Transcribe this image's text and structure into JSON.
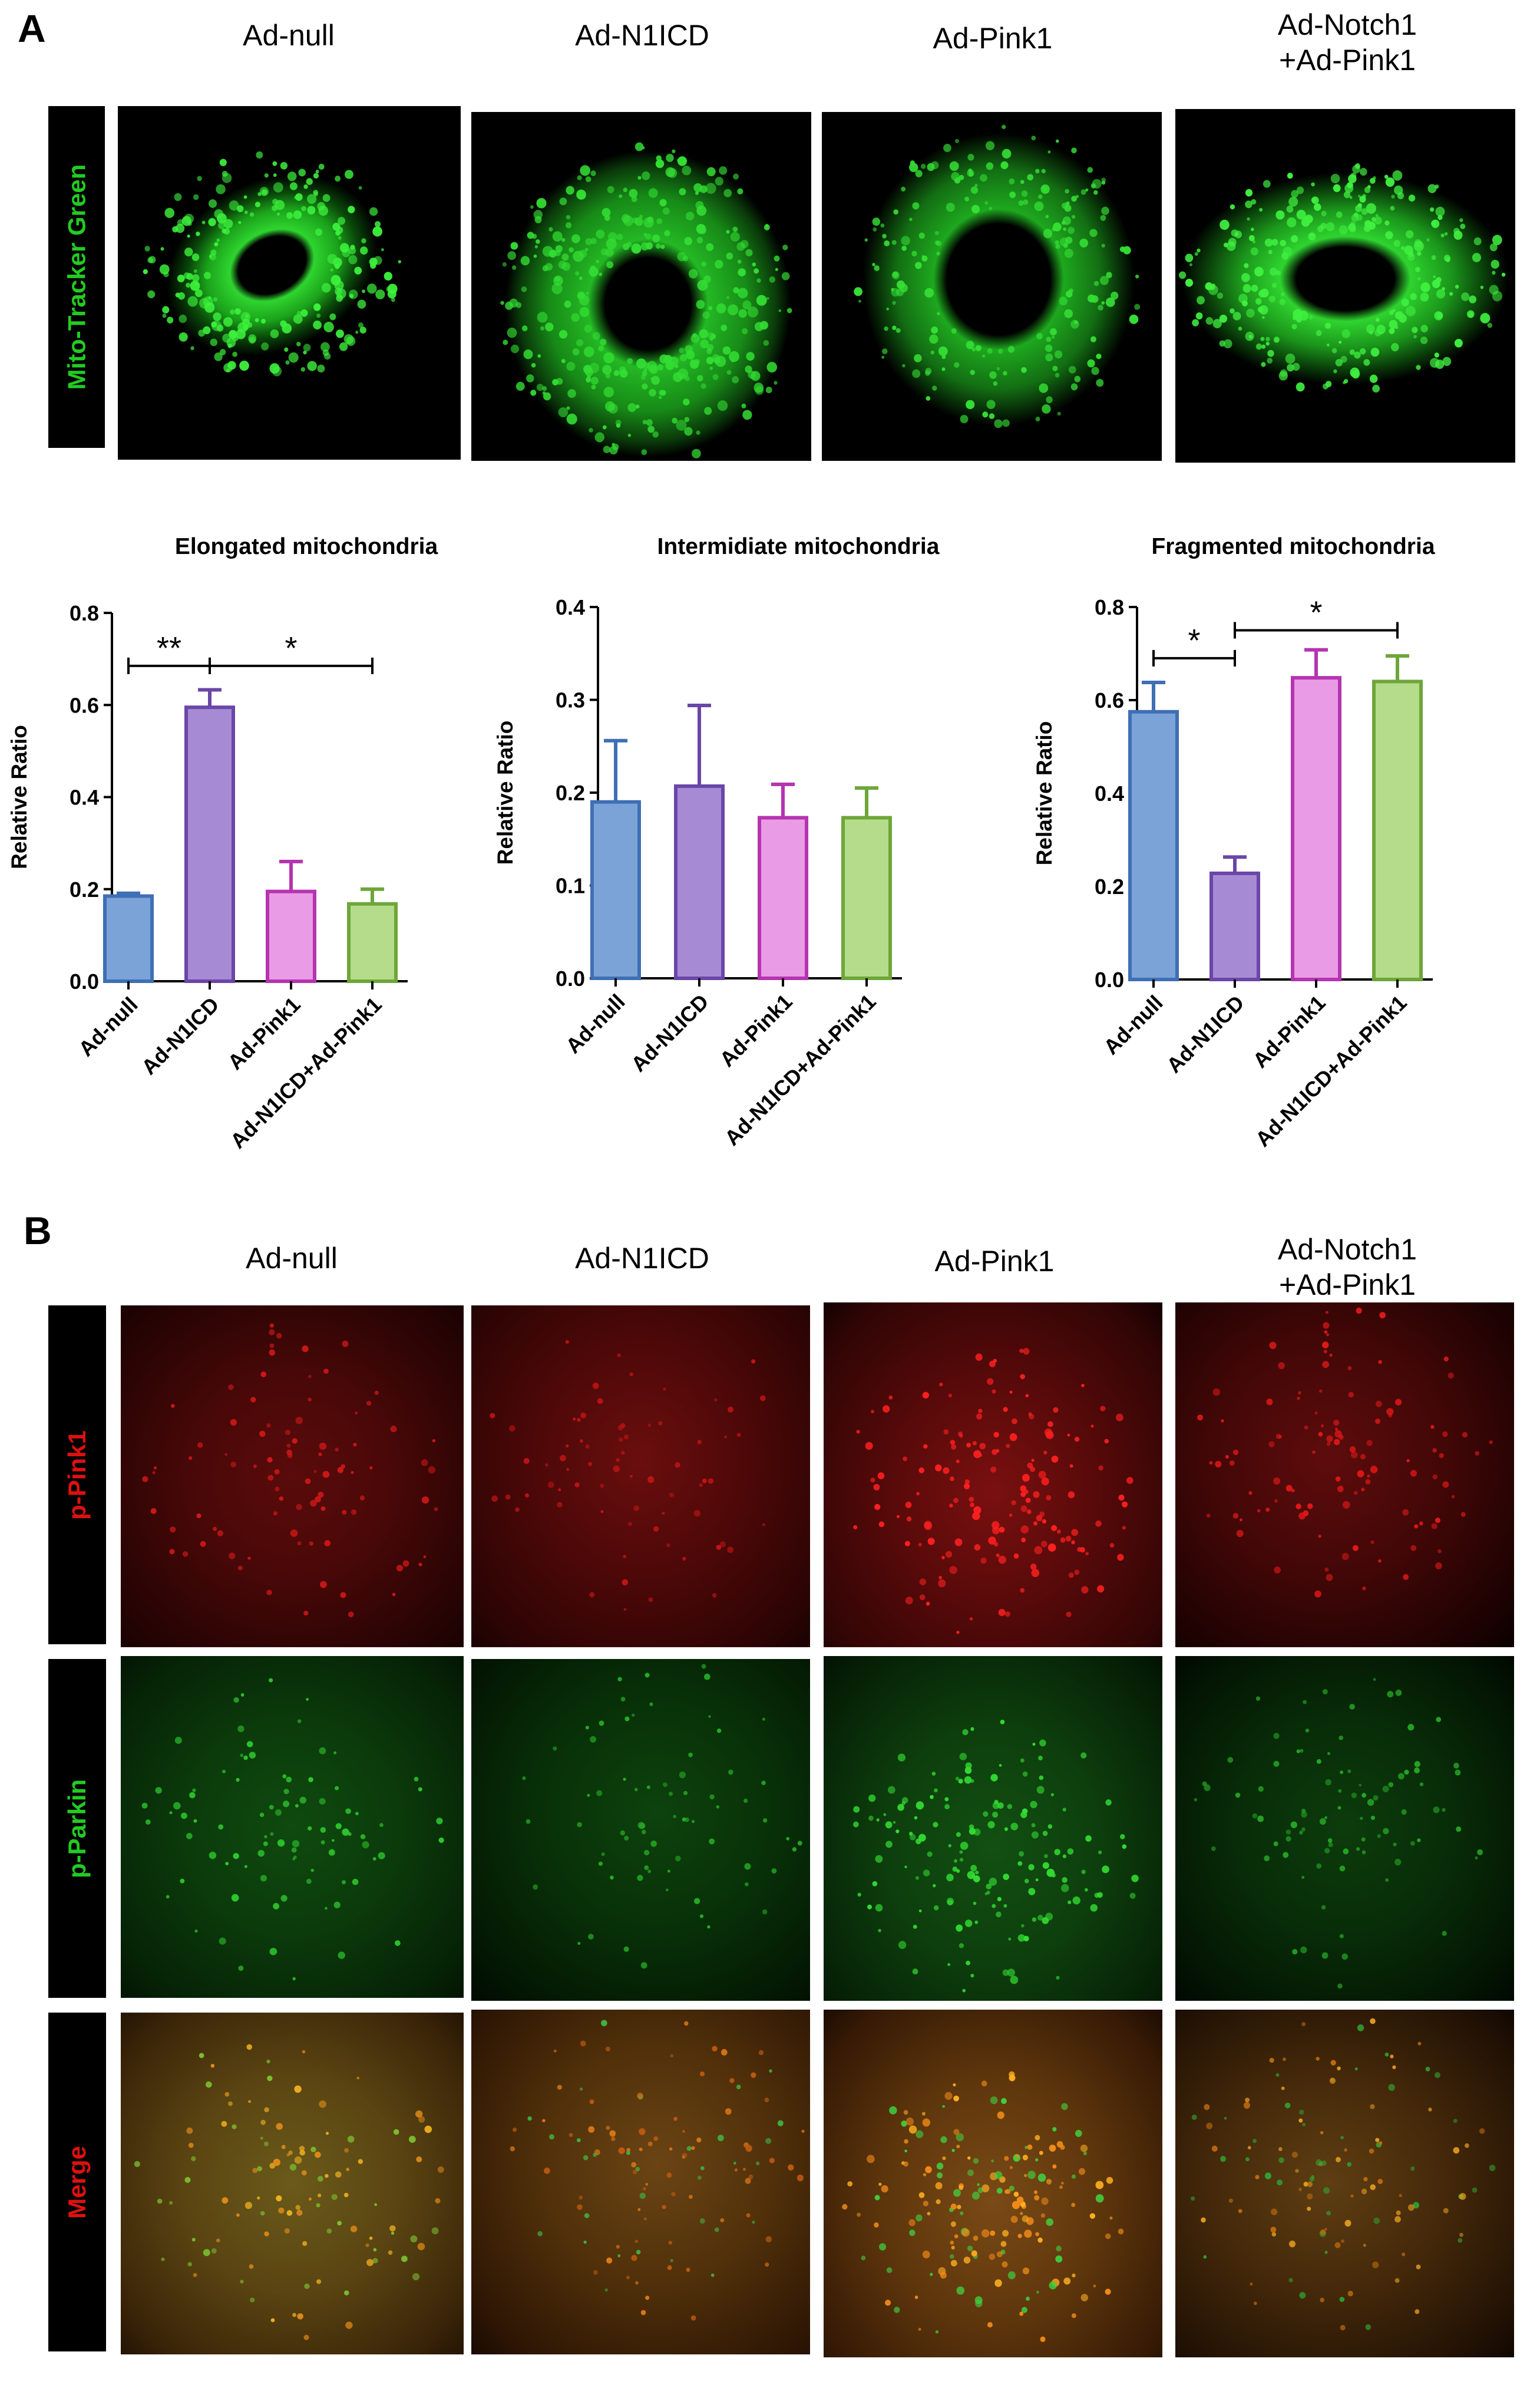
{
  "panelA": {
    "letter": "A",
    "columns": [
      "Ad-null",
      "Ad-N1ICD",
      "Ad-Pink1",
      "Ad-Notch1\n+Ad-Pink1"
    ],
    "stain_label": "Mito-Tracker Green",
    "stain_color": "#22cc22"
  },
  "panelB": {
    "letter": "B",
    "columns": [
      "Ad-null",
      "Ad-N1ICD",
      "Ad-Pink1",
      "Ad-Notch1\n+Ad-Pink1"
    ],
    "row_labels": [
      {
        "text": "p-Pink1",
        "color": "#e01010"
      },
      {
        "text": "p-Parkin",
        "color": "#22cc22"
      },
      {
        "text": "Merge",
        "color": "#e01010"
      }
    ]
  },
  "colors": {
    "bar_fills": [
      "#7ba3d8",
      "#a68bd4",
      "#e99be6",
      "#b5dc8a"
    ],
    "bar_strokes": [
      "#3f6fb4",
      "#6a46a8",
      "#b534b0",
      "#6ea63a"
    ]
  },
  "chart_data": [
    {
      "type": "bar",
      "title": "Elongated mitochondria",
      "ylabel": "Relative Ratio",
      "ylim": [
        0,
        0.8
      ],
      "yticks": [
        "0.0",
        "0.2",
        "0.4",
        "0.6",
        "0.8"
      ],
      "categories": [
        "Ad-null",
        "Ad-N1ICD",
        "Ad-Pink1",
        "Ad-N1ICD+Ad-Pink1"
      ],
      "values": [
        0.185,
        0.595,
        0.195,
        0.168
      ],
      "errors": [
        0.006,
        0.038,
        0.065,
        0.032
      ],
      "significance": [
        {
          "from": 0,
          "to": 1,
          "label": "**",
          "y": 0.685
        },
        {
          "from": 1,
          "to": 3,
          "label": "*",
          "y": 0.685
        }
      ]
    },
    {
      "type": "bar",
      "title": "Intermidiate mitochondria",
      "ylabel": "Relative Ratio",
      "ylim": [
        0,
        0.4
      ],
      "yticks": [
        "0.0",
        "0.1",
        "0.2",
        "0.3",
        "0.4"
      ],
      "categories": [
        "Ad-null",
        "Ad-N1ICD",
        "Ad-Pink1",
        "Ad-N1ICD+Ad-Pink1"
      ],
      "values": [
        0.19,
        0.207,
        0.173,
        0.173
      ],
      "errors": [
        0.066,
        0.087,
        0.036,
        0.032
      ],
      "significance": []
    },
    {
      "type": "bar",
      "title": "Fragmented mitochondria",
      "ylabel": "Relative Ratio",
      "ylim": [
        0,
        0.8
      ],
      "yticks": [
        "0.0",
        "0.2",
        "0.4",
        "0.6",
        "0.8"
      ],
      "categories": [
        "Ad-null",
        "Ad-N1ICD",
        "Ad-Pink1",
        "Ad-N1ICD+Ad-Pink1"
      ],
      "values": [
        0.575,
        0.228,
        0.648,
        0.64
      ],
      "errors": [
        0.063,
        0.035,
        0.06,
        0.055
      ],
      "significance": [
        {
          "from": 0,
          "to": 1,
          "label": "*",
          "y": 0.69
        },
        {
          "from": 1,
          "to": 3,
          "label": "*",
          "y": 0.75
        }
      ]
    }
  ]
}
